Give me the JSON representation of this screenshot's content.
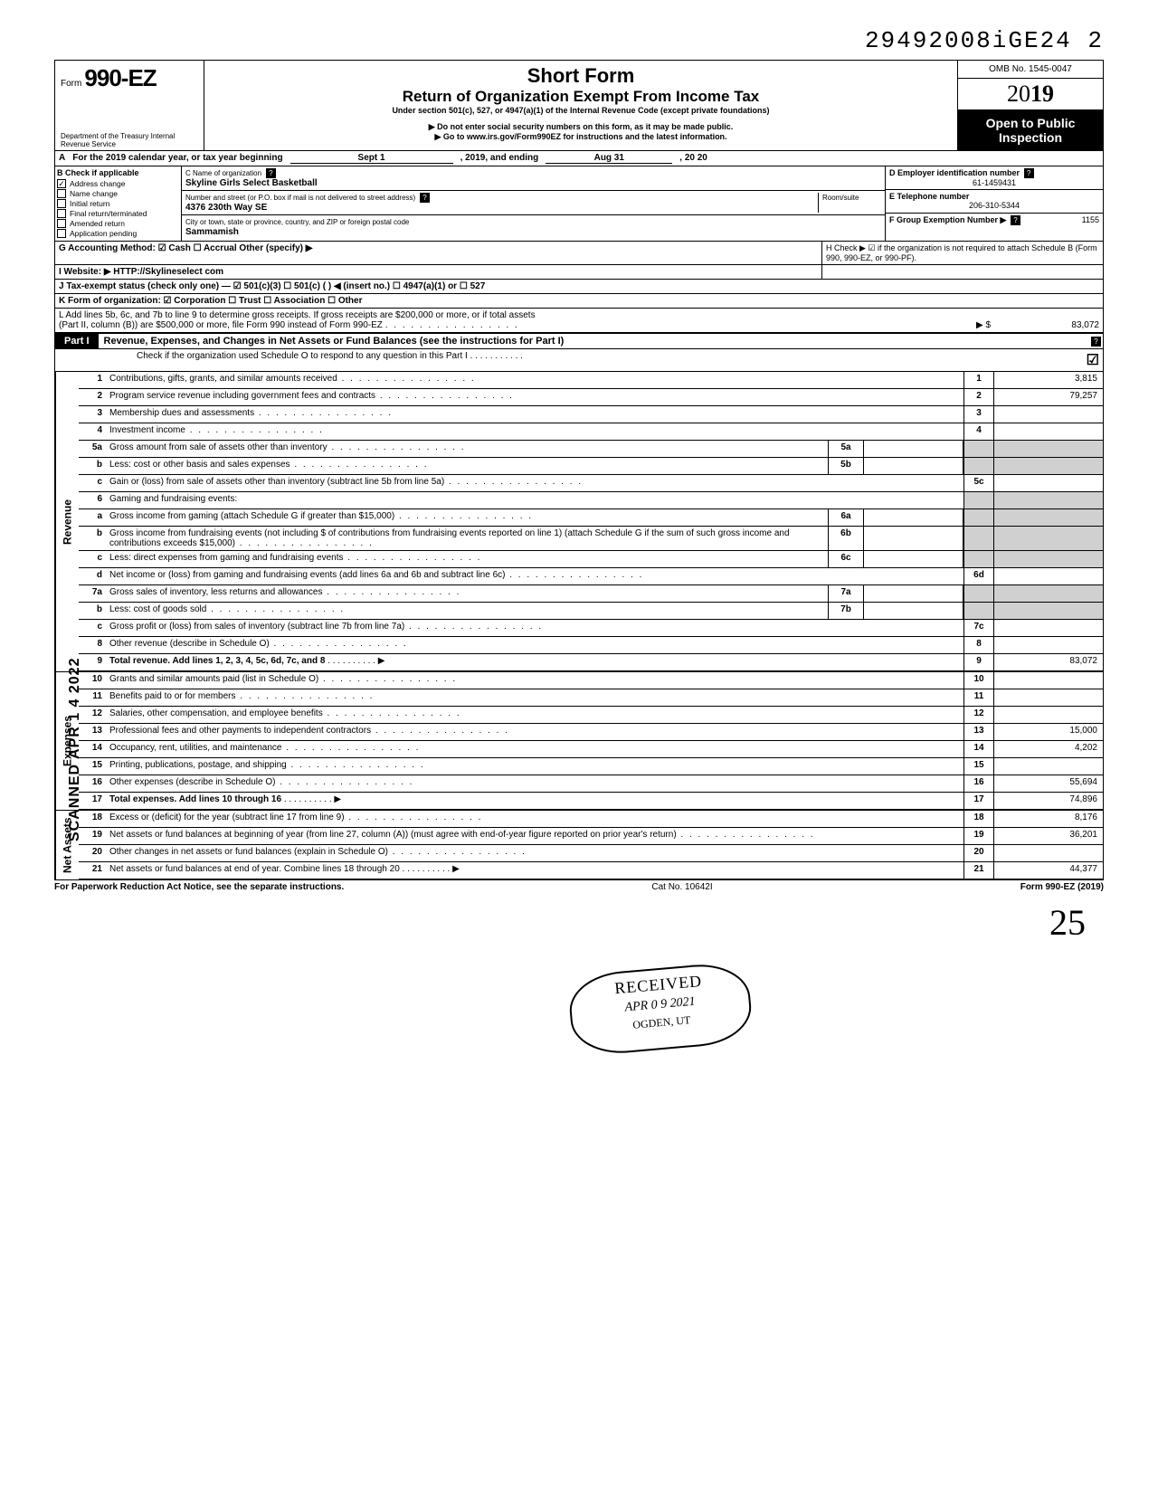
{
  "top_number": "29492008iGE24  2",
  "header": {
    "form_prefix": "Form",
    "form_number": "990-EZ",
    "dept": "Department of the Treasury\nInternal Revenue Service",
    "title": "Short Form",
    "subtitle": "Return of Organization Exempt From Income Tax",
    "under": "Under section 501(c), 527, or 4947(a)(1) of the Internal Revenue Code (except private foundations)",
    "note1": "▶ Do not enter social security numbers on this form, as it may be made public.",
    "note2": "▶ Go to www.irs.gov/Form990EZ for instructions and the latest information.",
    "omb": "OMB No. 1545-0047",
    "year_prefix": "20",
    "year_bold": "19",
    "open": "Open to Public Inspection"
  },
  "row_a": {
    "prefix": "A",
    "text": "For the 2019 calendar year, or tax year beginning",
    "begin": "Sept 1",
    "mid": ", 2019, and ending",
    "end_month": "Aug 31",
    "end_year": ", 20   20"
  },
  "col_b": {
    "header": "B Check if applicable",
    "items": [
      {
        "label": "Address change",
        "checked": true
      },
      {
        "label": "Name change",
        "checked": false
      },
      {
        "label": "Initial return",
        "checked": false
      },
      {
        "label": "Final return/terminated",
        "checked": false
      },
      {
        "label": "Amended return",
        "checked": false
      },
      {
        "label": "Application pending",
        "checked": false
      }
    ]
  },
  "col_c": {
    "name_label": "C  Name of organization",
    "name": "Skyline Girls Select Basketball",
    "addr_label": "Number and street (or P.O. box if mail is not delivered to street address)",
    "room_label": "Room/suite",
    "addr": "4376 230th Way SE",
    "city_label": "City or town, state or province, country, and ZIP or foreign postal code",
    "city": "Sammamish"
  },
  "col_def": {
    "d_label": "D Employer identification number",
    "d_val": "61-1459431",
    "e_label": "E Telephone number",
    "e_val": "206-310-5344",
    "f_label": "F Group Exemption Number ▶",
    "f_val": "1155"
  },
  "rows_ghijkl": {
    "g": "G Accounting Method:   ☑ Cash   ☐ Accrual   Other (specify) ▶",
    "h": "H Check ▶ ☑ if the organization is not required to attach Schedule B (Form 990, 990-EZ, or 990-PF).",
    "i": "I  Website: ▶   HTTP://Skylineselect com",
    "j": "J Tax-exempt status (check only one) — ☑ 501(c)(3)   ☐ 501(c) (      ) ◀ (insert no.) ☐ 4947(a)(1) or   ☐ 527",
    "k": "K Form of organization:   ☑ Corporation   ☐ Trust   ☐ Association   ☐ Other",
    "l1": "L  Add lines 5b, 6c, and 7b to line 9 to determine gross receipts. If gross receipts are $200,000 or more, or if total assets",
    "l2": "(Part II, column (B)) are $500,000 or more, file Form 990 instead of Form 990-EZ",
    "l_arrow": "▶  $",
    "l_val": "83,072"
  },
  "part1": {
    "label": "Part I",
    "title": "Revenue, Expenses, and Changes in Net Assets or Fund Balances (see the instructions for Part I)",
    "check_line": "Check if the organization used Schedule O to respond to any question in this Part I . . . . . . . . . . .",
    "check_val": "☑"
  },
  "lines": [
    {
      "num": "1",
      "desc": "Contributions, gifts, grants, and similar amounts received",
      "r": "1",
      "val": "3,815"
    },
    {
      "num": "2",
      "desc": "Program service revenue including government fees and contracts",
      "r": "2",
      "val": "79,257"
    },
    {
      "num": "3",
      "desc": "Membership dues and assessments",
      "r": "3",
      "val": ""
    },
    {
      "num": "4",
      "desc": "Investment income",
      "r": "4",
      "val": ""
    },
    {
      "num": "5a",
      "desc": "Gross amount from sale of assets other than inventory",
      "mid": "5a",
      "midval": ""
    },
    {
      "num": "b",
      "desc": "Less: cost or other basis and sales expenses",
      "mid": "5b",
      "midval": ""
    },
    {
      "num": "c",
      "desc": "Gain or (loss) from sale of assets other than inventory (subtract line 5b from line 5a)",
      "r": "5c",
      "val": ""
    },
    {
      "num": "6",
      "desc": "Gaming and fundraising events:"
    },
    {
      "num": "a",
      "desc": "Gross income from gaming (attach Schedule G if greater than $15,000)",
      "mid": "6a",
      "midval": ""
    },
    {
      "num": "b",
      "desc": "Gross income from fundraising events (not including  $                    of contributions from fundraising events reported on line 1) (attach Schedule G if the sum of such gross income and contributions exceeds $15,000)",
      "mid": "6b",
      "midval": ""
    },
    {
      "num": "c",
      "desc": "Less: direct expenses from gaming and fundraising events",
      "mid": "6c",
      "midval": ""
    },
    {
      "num": "d",
      "desc": "Net income or (loss) from gaming and fundraising events (add lines 6a and 6b and subtract line 6c)",
      "r": "6d",
      "val": ""
    },
    {
      "num": "7a",
      "desc": "Gross sales of inventory, less returns and allowances",
      "mid": "7a",
      "midval": ""
    },
    {
      "num": "b",
      "desc": "Less: cost of goods sold",
      "mid": "7b",
      "midval": ""
    },
    {
      "num": "c",
      "desc": "Gross profit or (loss) from sales of inventory (subtract line 7b from line 7a)",
      "r": "7c",
      "val": ""
    },
    {
      "num": "8",
      "desc": "Other revenue (describe in Schedule O)",
      "r": "8",
      "val": ""
    },
    {
      "num": "9",
      "desc": "Total revenue. Add lines 1, 2, 3, 4, 5c, 6d, 7c, and 8",
      "r": "9",
      "val": "83,072",
      "bold": true,
      "arrow": true
    }
  ],
  "exp_lines": [
    {
      "num": "10",
      "desc": "Grants and similar amounts paid (list in Schedule O)",
      "r": "10",
      "val": ""
    },
    {
      "num": "11",
      "desc": "Benefits paid to or for members",
      "r": "11",
      "val": ""
    },
    {
      "num": "12",
      "desc": "Salaries, other compensation, and employee benefits",
      "r": "12",
      "val": ""
    },
    {
      "num": "13",
      "desc": "Professional fees and other payments to independent contractors",
      "r": "13",
      "val": "15,000"
    },
    {
      "num": "14",
      "desc": "Occupancy, rent, utilities, and maintenance",
      "r": "14",
      "val": "4,202"
    },
    {
      "num": "15",
      "desc": "Printing, publications, postage, and shipping",
      "r": "15",
      "val": ""
    },
    {
      "num": "16",
      "desc": "Other expenses (describe in Schedule O)",
      "r": "16",
      "val": "55,694"
    },
    {
      "num": "17",
      "desc": "Total expenses. Add lines 10 through 16",
      "r": "17",
      "val": "74,896",
      "bold": true,
      "arrow": true
    }
  ],
  "net_lines": [
    {
      "num": "18",
      "desc": "Excess or (deficit) for the year (subtract line 17 from line 9)",
      "r": "18",
      "val": "8,176"
    },
    {
      "num": "19",
      "desc": "Net assets or fund balances at beginning of year (from line 27, column (A)) (must agree with end-of-year figure reported on prior year's return)",
      "r": "19",
      "val": "36,201"
    },
    {
      "num": "20",
      "desc": "Other changes in net assets or fund balances (explain in Schedule O)",
      "r": "20",
      "val": ""
    },
    {
      "num": "21",
      "desc": "Net assets or fund balances at end of year. Combine lines 18 through 20",
      "r": "21",
      "val": "44,377",
      "arrow": true
    }
  ],
  "side_labels": {
    "revenue": "Revenue",
    "expenses": "Expenses",
    "netassets": "Net Assets"
  },
  "footer": {
    "left": "For Paperwork Reduction Act Notice, see the separate instructions.",
    "mid": "Cat  No. 10642I",
    "right": "Form 990-EZ (2019)"
  },
  "scanned": "SCANNED APR 1 4 2022",
  "stamp": {
    "received": "RECEIVED",
    "date": "APR 0 9 2021",
    "loc": "OGDEN, UT"
  },
  "signature": "25"
}
